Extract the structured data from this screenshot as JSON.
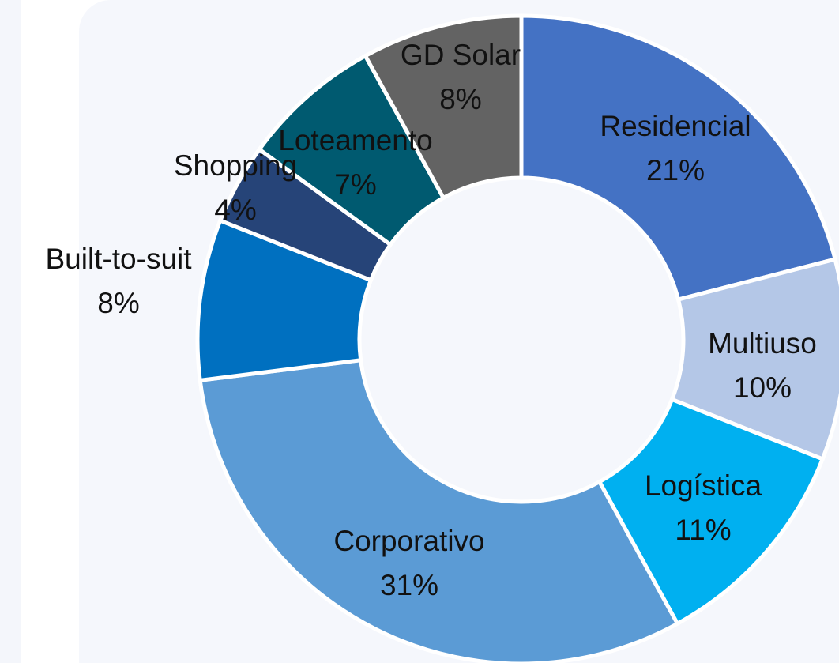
{
  "chart_data": {
    "type": "donut",
    "categories": [
      "Residencial",
      "Multiuso",
      "Logística",
      "Corporativo",
      "Built-to-suit",
      "Shopping",
      "Loteamento",
      "GD Solar"
    ],
    "values": [
      21,
      10,
      11,
      31,
      8,
      4,
      7,
      8
    ],
    "value_labels": [
      "21%",
      "10%",
      "11%",
      "31%",
      "8%",
      "4%",
      "7%",
      "8%"
    ],
    "colors": [
      "#4472c4",
      "#b4c7e7",
      "#00b0f0",
      "#5b9bd5",
      "#0070c0",
      "#264478",
      "#005a70",
      "#636363"
    ]
  }
}
